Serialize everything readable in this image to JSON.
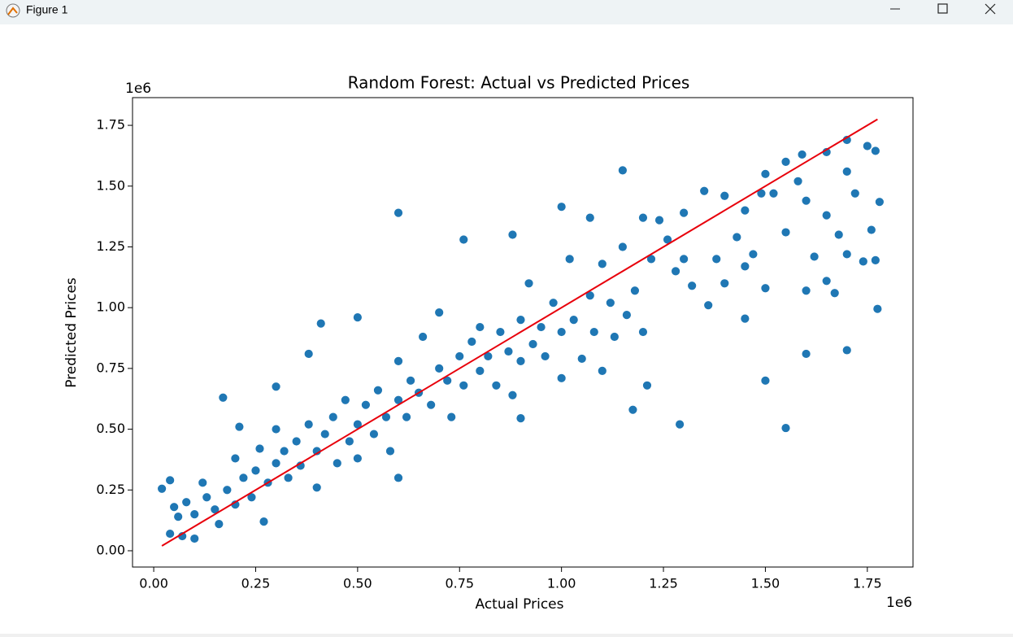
{
  "window": {
    "title": "Figure 1"
  },
  "chart_data": {
    "type": "scatter",
    "title": "Random Forest: Actual vs Predicted Prices",
    "x_label": "Actual Prices",
    "y_label": "Predicted Prices",
    "x_offset_label": "1e6",
    "y_offset_label": "1e6",
    "xlim": [
      -0.052,
      1.862
    ],
    "ylim": [
      -0.067,
      1.864
    ],
    "xticks": [
      {
        "value": 0,
        "label": "0.00"
      },
      0.25,
      {
        "value": 0.5,
        "label": "0.50"
      },
      0.75,
      {
        "value": 1,
        "label": "1.00"
      },
      1.25,
      {
        "value": 1.5,
        "label": "1.50"
      },
      1.75
    ],
    "yticks": [
      {
        "value": 0,
        "label": "0.00"
      },
      0.25,
      {
        "value": 0.5,
        "label": "0.50"
      },
      0.75,
      {
        "value": 1,
        "label": "1.00"
      },
      1.25,
      {
        "value": 1.5,
        "label": "1.50"
      },
      1.75
    ],
    "grid": false,
    "series": [
      {
        "color": "#1f77b4",
        "x": [
          0.6,
          0.6,
          1.15,
          1.775,
          1.7,
          1.6,
          1.55,
          1.29,
          1.175,
          1.21,
          1.5,
          1.45,
          0.17,
          0.02,
          0.04,
          1.0,
          0.38,
          0.41,
          0.5,
          1.59,
          1.7,
          1.75,
          1.77,
          0.3,
          0.21,
          0.76,
          0.88,
          1.07,
          0.9,
          0.04,
          0.05,
          0.06,
          0.07,
          0.08,
          0.1,
          0.1,
          0.12,
          0.13,
          0.15,
          0.16,
          0.18,
          0.2,
          0.2,
          0.22,
          0.24,
          0.25,
          0.26,
          0.27,
          0.28,
          0.3,
          0.3,
          0.32,
          0.33,
          0.35,
          0.36,
          0.38,
          0.4,
          0.4,
          0.42,
          0.44,
          0.45,
          0.47,
          0.48,
          0.5,
          0.5,
          0.52,
          0.54,
          0.55,
          0.57,
          0.58,
          0.6,
          0.6,
          0.62,
          0.63,
          0.65,
          0.66,
          0.68,
          0.7,
          0.7,
          0.72,
          0.73,
          0.75,
          0.76,
          0.78,
          0.8,
          0.8,
          0.82,
          0.84,
          0.85,
          0.87,
          0.88,
          0.9,
          0.9,
          0.92,
          0.93,
          0.95,
          0.96,
          0.98,
          1.0,
          1.0,
          1.02,
          1.03,
          1.05,
          1.07,
          1.08,
          1.1,
          1.1,
          1.12,
          1.13,
          1.15,
          1.16,
          1.18,
          1.2,
          1.2,
          1.22,
          1.24,
          1.26,
          1.28,
          1.3,
          1.3,
          1.32,
          1.35,
          1.36,
          1.38,
          1.4,
          1.4,
          1.43,
          1.45,
          1.45,
          1.47,
          1.49,
          1.5,
          1.5,
          1.52,
          1.55,
          1.55,
          1.58,
          1.6,
          1.6,
          1.62,
          1.65,
          1.65,
          1.65,
          1.67,
          1.68,
          1.7,
          1.7,
          1.72,
          1.74,
          1.76,
          1.77,
          1.78
        ],
        "y": [
          1.39,
          0.3,
          1.565,
          0.995,
          0.825,
          0.81,
          0.505,
          0.52,
          0.58,
          0.68,
          0.7,
          0.955,
          0.63,
          0.255,
          0.29,
          1.415,
          0.81,
          0.935,
          0.96,
          1.63,
          1.69,
          1.665,
          1.645,
          0.675,
          0.51,
          1.28,
          1.3,
          1.37,
          0.545,
          0.07,
          0.18,
          0.14,
          0.06,
          0.2,
          0.05,
          0.15,
          0.28,
          0.22,
          0.17,
          0.11,
          0.25,
          0.19,
          0.38,
          0.3,
          0.22,
          0.33,
          0.42,
          0.12,
          0.28,
          0.36,
          0.5,
          0.41,
          0.3,
          0.45,
          0.35,
          0.52,
          0.41,
          0.26,
          0.48,
          0.55,
          0.36,
          0.62,
          0.45,
          0.52,
          0.38,
          0.6,
          0.48,
          0.66,
          0.55,
          0.41,
          0.62,
          0.78,
          0.55,
          0.7,
          0.65,
          0.88,
          0.6,
          0.75,
          0.98,
          0.7,
          0.55,
          0.8,
          0.68,
          0.86,
          0.74,
          0.92,
          0.8,
          0.68,
          0.9,
          0.82,
          0.64,
          0.95,
          0.78,
          1.1,
          0.85,
          0.92,
          0.8,
          1.02,
          0.71,
          0.9,
          1.2,
          0.95,
          0.79,
          1.05,
          0.9,
          1.18,
          0.74,
          1.02,
          0.88,
          1.25,
          0.97,
          1.07,
          1.37,
          0.9,
          1.2,
          1.36,
          1.28,
          1.15,
          1.39,
          1.2,
          1.09,
          1.48,
          1.01,
          1.2,
          1.1,
          1.46,
          1.29,
          1.4,
          1.17,
          1.22,
          1.47,
          1.08,
          1.55,
          1.47,
          1.31,
          1.6,
          1.52,
          1.07,
          1.44,
          1.21,
          1.64,
          1.11,
          1.38,
          1.06,
          1.3,
          1.56,
          1.22,
          1.47,
          1.19,
          1.32,
          1.195,
          1.435
        ]
      }
    ],
    "reference_line": {
      "color": "#e8000b",
      "x": [
        0.02,
        1.775
      ],
      "y": [
        0.02,
        1.775
      ]
    }
  }
}
